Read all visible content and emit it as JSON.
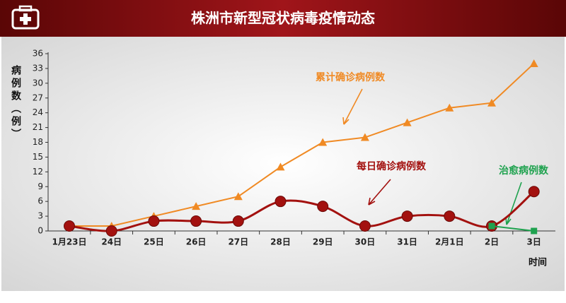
{
  "chart_data": {
    "type": "line",
    "title": "株洲市新型冠状病毒疫情动态",
    "y_label": "病例数（例）",
    "x_label": "时间",
    "categories": [
      "1月23日",
      "24日",
      "25日",
      "26日",
      "27日",
      "28日",
      "29日",
      "30日",
      "31日",
      "2月1日",
      "2日",
      "3日"
    ],
    "series": [
      {
        "name": "累计确诊病例数",
        "color": "#f08a24",
        "marker": "triangle",
        "values": [
          1,
          1,
          3,
          5,
          7,
          13,
          18,
          19,
          22,
          25,
          26,
          34
        ]
      },
      {
        "name": "每日确诊病例数",
        "color": "#a3110f",
        "marker": "circle",
        "values": [
          1,
          0,
          2,
          2,
          2,
          6,
          5,
          1,
          3,
          3,
          1,
          8
        ]
      },
      {
        "name": "治愈病例数",
        "color": "#1fa24f",
        "marker": "square",
        "values": [
          null,
          null,
          null,
          null,
          null,
          null,
          null,
          null,
          null,
          null,
          1,
          0
        ]
      }
    ],
    "ylim": [
      0,
      36
    ],
    "yticks": [
      0,
      3,
      6,
      9,
      12,
      15,
      18,
      21,
      24,
      27,
      30,
      33,
      36
    ]
  }
}
